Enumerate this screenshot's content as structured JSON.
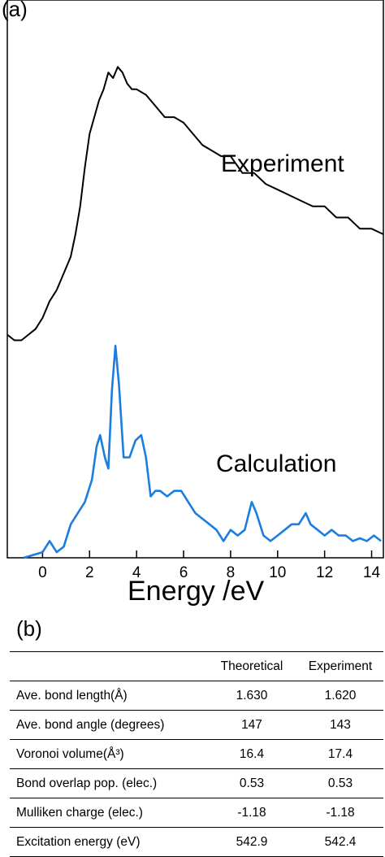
{
  "panel_a": {
    "label": "(a)"
  },
  "panel_b": {
    "label": "(b)"
  },
  "chart_data": [
    {
      "type": "line",
      "xlabel": "Energy /eV",
      "ylabel": "",
      "xlim": [
        -1.5,
        14.5
      ],
      "ylim": [
        0,
        1.0
      ],
      "xticks": [
        0,
        2,
        4,
        6,
        8,
        10,
        12,
        14
      ],
      "xtick_labels": [
        "0",
        "2",
        "4",
        "6",
        "8",
        "10",
        "12",
        "14"
      ],
      "grid": false,
      "series": [
        {
          "name": "Experiment",
          "color": "#000000",
          "x": [
            -1.5,
            -1.2,
            -0.9,
            -0.6,
            -0.3,
            0.0,
            0.3,
            0.6,
            0.9,
            1.2,
            1.4,
            1.6,
            1.8,
            2.0,
            2.2,
            2.4,
            2.6,
            2.8,
            3.0,
            3.2,
            3.4,
            3.6,
            3.8,
            4.0,
            4.4,
            4.8,
            5.2,
            5.6,
            6.0,
            6.4,
            6.8,
            7.2,
            7.6,
            8.0,
            8.5,
            9.0,
            9.5,
            10.0,
            10.5,
            11.0,
            11.5,
            12.0,
            12.5,
            13.0,
            13.5,
            14.0,
            14.5
          ],
          "y": [
            0.4,
            0.39,
            0.39,
            0.4,
            0.41,
            0.43,
            0.46,
            0.48,
            0.51,
            0.54,
            0.58,
            0.63,
            0.7,
            0.76,
            0.79,
            0.82,
            0.84,
            0.87,
            0.86,
            0.88,
            0.87,
            0.85,
            0.84,
            0.84,
            0.83,
            0.81,
            0.79,
            0.79,
            0.78,
            0.76,
            0.74,
            0.73,
            0.72,
            0.72,
            0.69,
            0.69,
            0.67,
            0.66,
            0.65,
            0.64,
            0.63,
            0.63,
            0.61,
            0.61,
            0.59,
            0.59,
            0.58
          ]
        },
        {
          "name": "Calculation",
          "color": "#1a7de0",
          "x": [
            -0.8,
            0.0,
            0.3,
            0.6,
            0.9,
            1.2,
            1.5,
            1.8,
            2.1,
            2.3,
            2.45,
            2.65,
            2.8,
            2.95,
            3.1,
            3.25,
            3.45,
            3.7,
            3.95,
            4.2,
            4.4,
            4.6,
            4.8,
            5.0,
            5.3,
            5.6,
            5.9,
            6.2,
            6.5,
            6.8,
            7.1,
            7.4,
            7.7,
            8.0,
            8.3,
            8.6,
            8.9,
            9.1,
            9.4,
            9.7,
            10.0,
            10.3,
            10.6,
            10.9,
            11.2,
            11.4,
            11.7,
            12.0,
            12.3,
            12.6,
            12.9,
            13.2,
            13.5,
            13.8,
            14.1,
            14.4
          ],
          "y": [
            0.0,
            0.01,
            0.03,
            0.01,
            0.02,
            0.06,
            0.08,
            0.1,
            0.14,
            0.2,
            0.22,
            0.18,
            0.16,
            0.3,
            0.38,
            0.31,
            0.18,
            0.18,
            0.21,
            0.22,
            0.18,
            0.11,
            0.12,
            0.12,
            0.11,
            0.12,
            0.12,
            0.1,
            0.08,
            0.07,
            0.06,
            0.05,
            0.03,
            0.05,
            0.04,
            0.05,
            0.1,
            0.08,
            0.04,
            0.03,
            0.04,
            0.05,
            0.06,
            0.06,
            0.08,
            0.06,
            0.05,
            0.04,
            0.05,
            0.04,
            0.04,
            0.03,
            0.035,
            0.03,
            0.04,
            0.03
          ]
        }
      ],
      "annotations": [
        "Experiment",
        "Calculation"
      ]
    },
    {
      "type": "table",
      "columns": [
        "",
        "Theoretical",
        "Experiment"
      ],
      "rows": [
        [
          "Ave. bond length(Å)",
          "1.630",
          "1.620"
        ],
        [
          "Ave. bond angle (degrees)",
          "147",
          "143"
        ],
        [
          "Voronoi volume(Å³)",
          "16.4",
          "17.4"
        ],
        [
          "Bond overlap pop. (elec.)",
          "0.53",
          "0.53"
        ],
        [
          "Mulliken charge (elec.)",
          "-1.18",
          "-1.18"
        ],
        [
          "Excitation energy (eV)",
          "542.9",
          "542.4"
        ]
      ]
    }
  ]
}
